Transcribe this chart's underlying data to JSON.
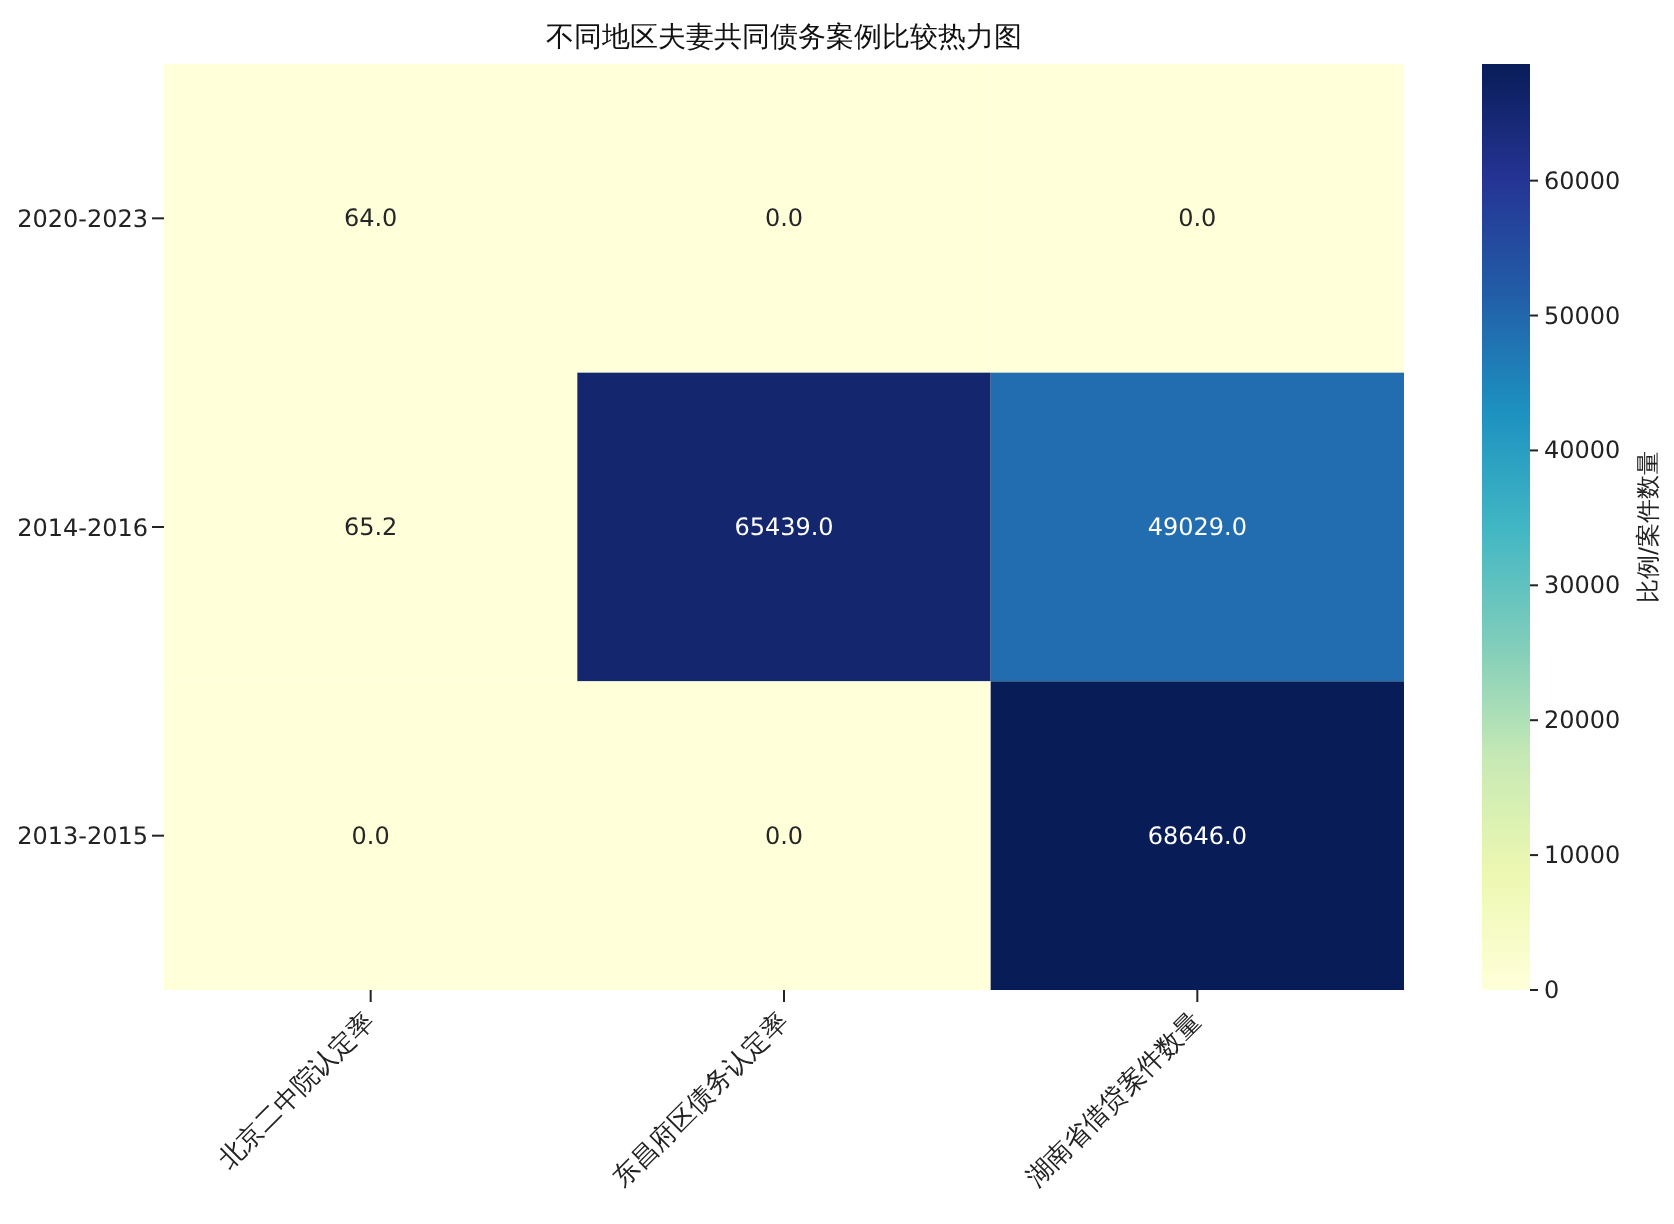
{
  "chart_data": {
    "type": "heatmap",
    "title": "不同地区夫妻共同债务案例比较热力图",
    "categories": [
      "北京二中院认定率",
      "东昌府区债务认定率",
      "湖南省借贷案件数量"
    ],
    "y_categories": [
      "2020-2023",
      "2014-2016",
      "2013-2015"
    ],
    "cells": [
      [
        64,
        0,
        0
      ],
      [
        65.2,
        65439,
        49029
      ],
      [
        0,
        0,
        68646
      ]
    ],
    "cell_labels": [
      [
        "64.0",
        "0.0",
        "0.0"
      ],
      [
        "65.2",
        "65439.0",
        "49029.0"
      ],
      [
        "0.0",
        "0.0",
        "68646.0"
      ]
    ],
    "clabel": "比例/案件数量",
    "clim": [
      0,
      68646
    ],
    "cticks": [
      0,
      10000,
      20000,
      30000,
      40000,
      50000,
      60000
    ]
  }
}
